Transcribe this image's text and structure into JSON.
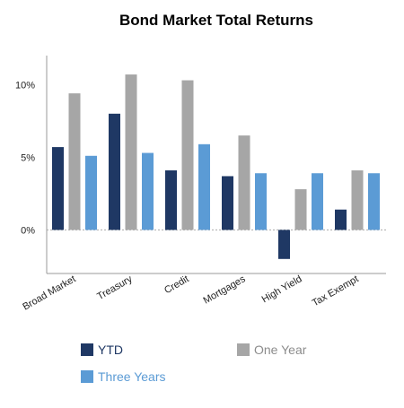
{
  "chart_data": {
    "type": "bar",
    "title": "Bond Market Total Returns",
    "categories": [
      "Broad Market",
      "Treasury",
      "Credit",
      "Mortgages",
      "High Yield",
      "Tax Exempt"
    ],
    "series": [
      {
        "name": "YTD",
        "color": "#1f3864",
        "values": [
          5.7,
          8.0,
          4.1,
          3.7,
          -2.0,
          1.4
        ]
      },
      {
        "name": "One Year",
        "color": "#a6a6a6",
        "values": [
          9.4,
          10.7,
          10.3,
          6.5,
          2.8,
          4.1
        ]
      },
      {
        "name": "Three Years",
        "color": "#5b9bd5",
        "values": [
          5.1,
          5.3,
          5.9,
          3.9,
          3.9,
          3.9
        ]
      }
    ],
    "y_ticks": [
      "10%",
      "5%",
      "0%"
    ],
    "y_tick_values": [
      10,
      5,
      0
    ],
    "ylim": [
      -3,
      12
    ],
    "grid": false,
    "zero_line": "dotted",
    "legend_position": "bottom"
  }
}
